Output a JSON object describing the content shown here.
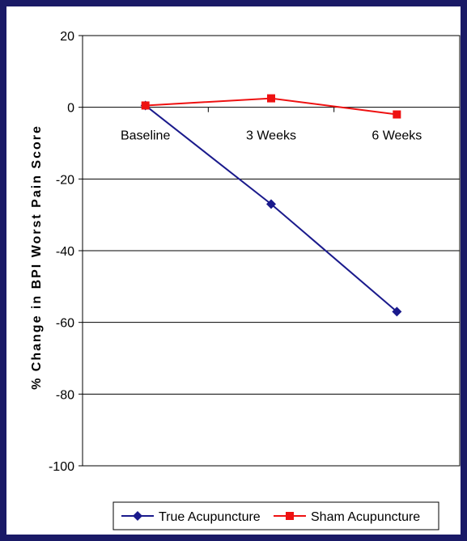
{
  "chart_data": {
    "type": "line",
    "categories": [
      "Baseline",
      "3 Weeks",
      "6 Weeks"
    ],
    "series": [
      {
        "name": "True Acupuncture",
        "values": [
          0.5,
          -27,
          -57
        ],
        "color": "#1a1a8c",
        "marker": "diamond"
      },
      {
        "name": "Sham Acupuncture",
        "values": [
          0.5,
          2.5,
          -2
        ],
        "color": "#ee1111",
        "marker": "square"
      }
    ],
    "ylabel": "% Change in BPI Worst Pain Score",
    "xlabel": "",
    "ylim": [
      -100,
      20
    ],
    "yticks": [
      20,
      0,
      -20,
      -40,
      -60,
      -80,
      -100
    ],
    "grid": true,
    "legend_position": "bottom"
  },
  "colors": {
    "page_border": "#1a1a66",
    "background": "#ffffff"
  }
}
